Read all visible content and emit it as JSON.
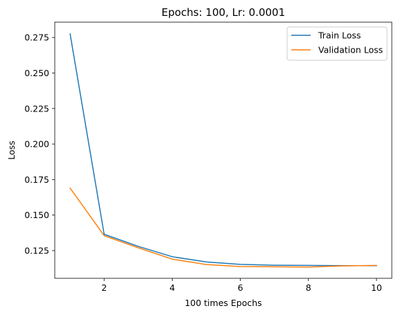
{
  "chart_data": {
    "type": "line",
    "title": "Epochs: 100, Lr: 0.0001",
    "xlabel": "100 times Epochs",
    "ylabel": "Loss",
    "x": [
      1,
      2,
      3,
      4,
      5,
      6,
      7,
      8,
      9,
      10
    ],
    "xlim": [
      0.55,
      10.45
    ],
    "ylim": [
      0.1055,
      0.2858
    ],
    "xticks": [
      2,
      4,
      6,
      8,
      10
    ],
    "yticks": [
      0.125,
      0.15,
      0.175,
      0.2,
      0.225,
      0.25,
      0.275
    ],
    "xtick_labels": [
      "2",
      "4",
      "6",
      "8",
      "10"
    ],
    "ytick_labels": [
      "0.125",
      "0.150",
      "0.175",
      "0.200",
      "0.225",
      "0.250",
      "0.275"
    ],
    "grid": false,
    "legend_position": "top-right",
    "series": [
      {
        "name": "Train Loss",
        "color": "#1f77b4",
        "values": [
          0.2775,
          0.1365,
          0.128,
          0.1207,
          0.117,
          0.1153,
          0.1147,
          0.1146,
          0.1144,
          0.1144
        ]
      },
      {
        "name": "Validation Loss",
        "color": "#ff7f0e",
        "values": [
          0.169,
          0.1355,
          0.127,
          0.119,
          0.1152,
          0.1138,
          0.1136,
          0.1134,
          0.1142,
          0.1146
        ]
      }
    ]
  }
}
